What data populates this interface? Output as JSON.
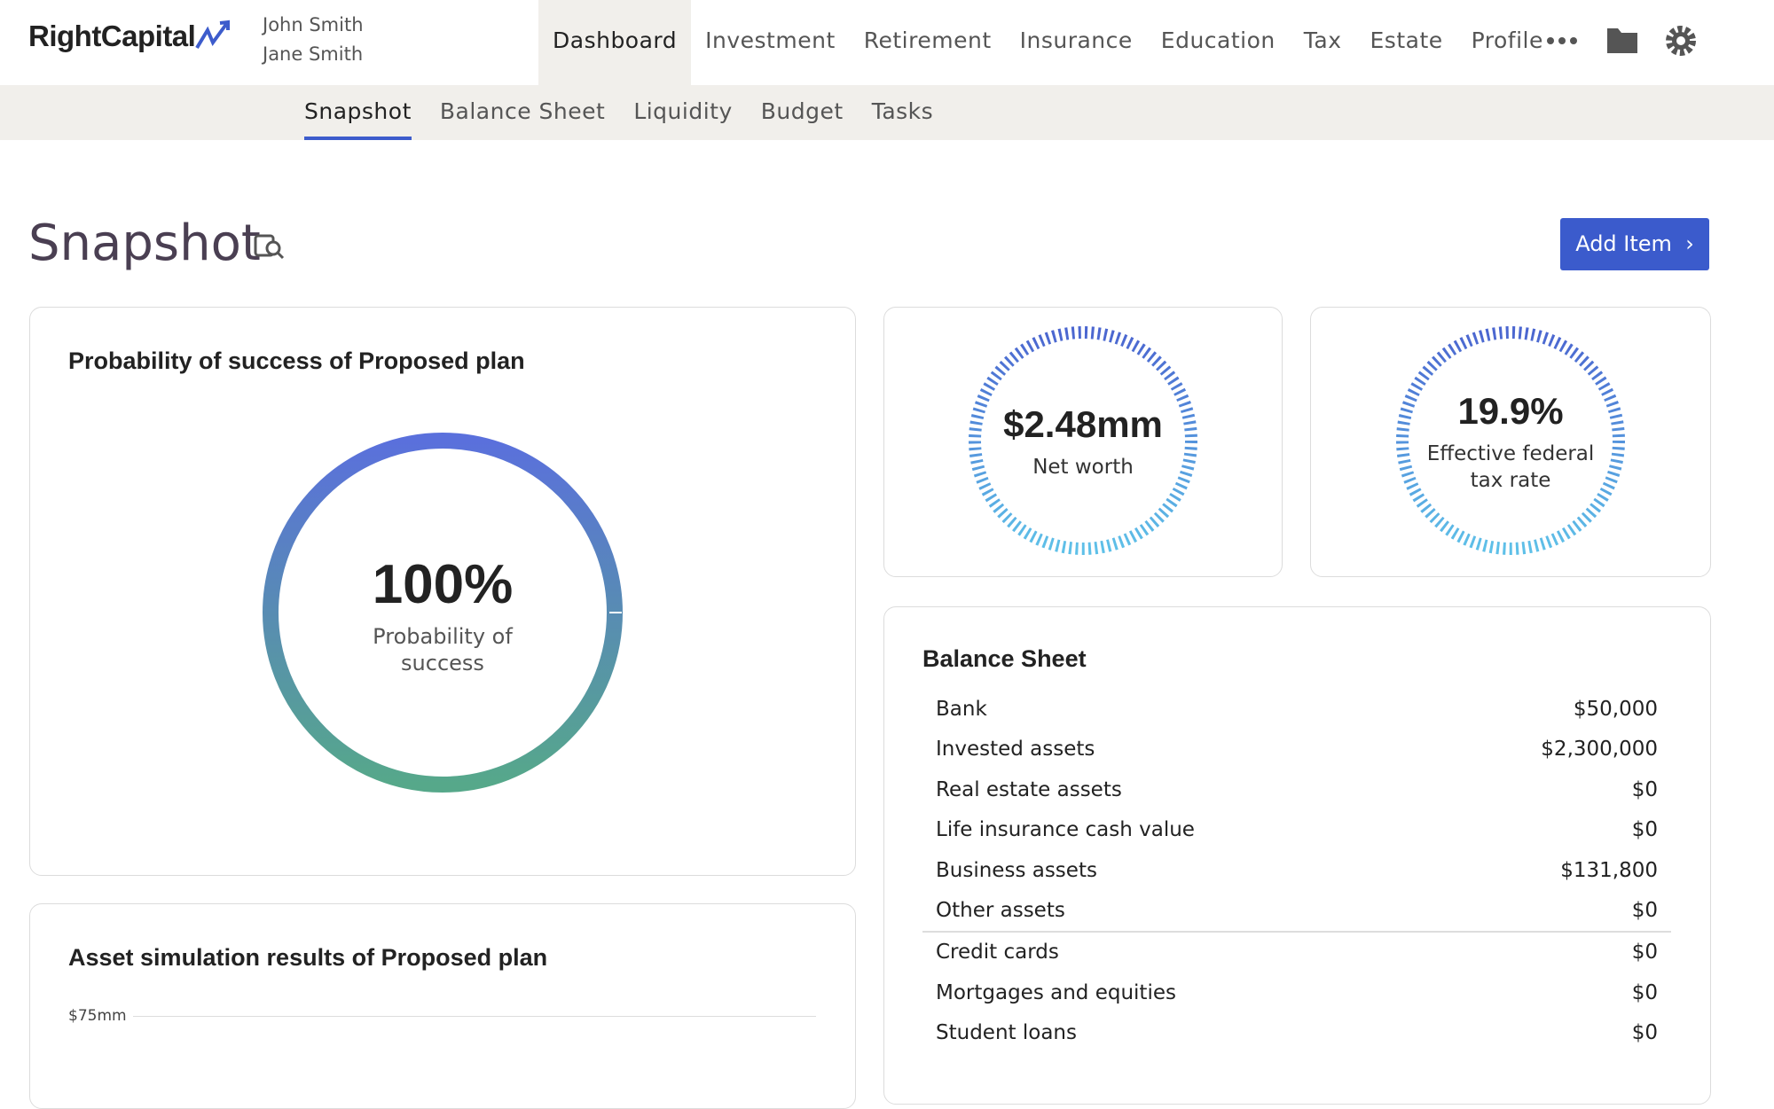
{
  "header": {
    "logo": "RightCapital",
    "clients": [
      "John Smith",
      "Jane Smith"
    ],
    "nav": [
      "Dashboard",
      "Investment",
      "Retirement",
      "Insurance",
      "Education",
      "Tax",
      "Estate",
      "Profile"
    ],
    "subnav": [
      "Snapshot",
      "Balance Sheet",
      "Liquidity",
      "Budget",
      "Tasks"
    ]
  },
  "page": {
    "title": "Snapshot",
    "button": "Add Item"
  },
  "success_card": {
    "title": "Probability of success of Proposed plan",
    "value": "100%",
    "label": "Probability of success"
  },
  "net_worth": {
    "value": "$2.48mm",
    "label": "Net worth"
  },
  "tax_rate": {
    "value": "19.9%",
    "label": "Effective federal tax rate"
  },
  "balance_sheet": {
    "title": "Balance Sheet",
    "rows": [
      [
        "Bank",
        "$50,000"
      ],
      [
        "Invested assets",
        "$2,300,000"
      ],
      [
        "Real estate assets",
        "$0"
      ],
      [
        "Life insurance cash value",
        "$0"
      ],
      [
        "Business assets",
        "$131,800"
      ],
      [
        "Other assets",
        "$0"
      ],
      [
        "Credit cards",
        "$0"
      ],
      [
        "Mortgages and equities",
        "$0"
      ],
      [
        "Student loans",
        "$0"
      ]
    ]
  },
  "asset_card": {
    "title": "Asset simulation results of Proposed plan",
    "y_label": "$75mm"
  }
}
